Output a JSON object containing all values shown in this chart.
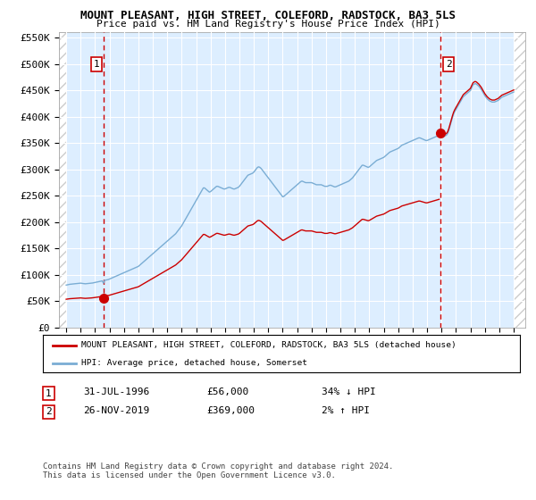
{
  "title": "MOUNT PLEASANT, HIGH STREET, COLEFORD, RADSTOCK, BA3 5LS",
  "subtitle": "Price paid vs. HM Land Registry's House Price Index (HPI)",
  "legend_line1": "MOUNT PLEASANT, HIGH STREET, COLEFORD, RADSTOCK, BA3 5LS (detached house)",
  "legend_line2": "HPI: Average price, detached house, Somerset",
  "footnote": "Contains HM Land Registry data © Crown copyright and database right 2024.\nThis data is licensed under the Open Government Licence v3.0.",
  "sale1_date": "31-JUL-1996",
  "sale1_price": 56000,
  "sale1_hpi": "34% ↓ HPI",
  "sale1_label": "1",
  "sale1_year": 1996.583,
  "sale2_date": "26-NOV-2019",
  "sale2_price": 369000,
  "sale2_label": "2",
  "sale2_year": 2019.9,
  "sale2_hpi": "2% ↑ HPI",
  "ylim": [
    0,
    560000
  ],
  "yticks": [
    0,
    50000,
    100000,
    150000,
    200000,
    250000,
    300000,
    350000,
    400000,
    450000,
    500000,
    550000
  ],
  "ytick_labels": [
    "£0",
    "£50K",
    "£100K",
    "£150K",
    "£200K",
    "£250K",
    "£300K",
    "£350K",
    "£400K",
    "£450K",
    "£500K",
    "£550K"
  ],
  "xlim_start": 1993.5,
  "xlim_end": 2025.8,
  "hpi_color": "#7aadd4",
  "sale_color": "#cc0000",
  "background_color": "#ddeeff",
  "hatch_color": "#cccccc",
  "grid_color": "#ffffff",
  "vline_color": "#cc0000",
  "hpi_monthly": [
    [
      1994.0,
      80500
    ],
    [
      1994.083,
      81000
    ],
    [
      1994.167,
      81500
    ],
    [
      1994.25,
      82000
    ],
    [
      1994.333,
      82200
    ],
    [
      1994.417,
      82500
    ],
    [
      1994.5,
      82800
    ],
    [
      1994.583,
      83000
    ],
    [
      1994.667,
      83200
    ],
    [
      1994.75,
      83500
    ],
    [
      1994.833,
      83700
    ],
    [
      1994.917,
      84000
    ],
    [
      1995.0,
      84200
    ],
    [
      1995.083,
      83800
    ],
    [
      1995.167,
      83500
    ],
    [
      1995.25,
      83200
    ],
    [
      1995.333,
      83000
    ],
    [
      1995.417,
      83200
    ],
    [
      1995.5,
      83500
    ],
    [
      1995.583,
      83800
    ],
    [
      1995.667,
      84000
    ],
    [
      1995.75,
      84200
    ],
    [
      1995.833,
      84500
    ],
    [
      1995.917,
      85000
    ],
    [
      1996.0,
      85500
    ],
    [
      1996.083,
      86000
    ],
    [
      1996.167,
      86500
    ],
    [
      1996.25,
      87000
    ],
    [
      1996.333,
      87500
    ],
    [
      1996.417,
      88000
    ],
    [
      1996.5,
      88500
    ],
    [
      1996.583,
      84000
    ],
    [
      1996.667,
      89500
    ],
    [
      1996.75,
      90000
    ],
    [
      1996.833,
      90500
    ],
    [
      1996.917,
      91000
    ],
    [
      1997.0,
      92000
    ],
    [
      1997.083,
      93000
    ],
    [
      1997.167,
      94000
    ],
    [
      1997.25,
      95000
    ],
    [
      1997.333,
      96000
    ],
    [
      1997.417,
      97000
    ],
    [
      1997.5,
      98000
    ],
    [
      1997.583,
      99000
    ],
    [
      1997.667,
      100000
    ],
    [
      1997.75,
      101000
    ],
    [
      1997.833,
      102000
    ],
    [
      1997.917,
      103000
    ],
    [
      1998.0,
      104000
    ],
    [
      1998.083,
      105000
    ],
    [
      1998.167,
      106000
    ],
    [
      1998.25,
      107000
    ],
    [
      1998.333,
      108000
    ],
    [
      1998.417,
      109000
    ],
    [
      1998.5,
      110000
    ],
    [
      1998.583,
      111000
    ],
    [
      1998.667,
      112000
    ],
    [
      1998.75,
      113000
    ],
    [
      1998.833,
      114000
    ],
    [
      1998.917,
      115000
    ],
    [
      1999.0,
      116000
    ],
    [
      1999.083,
      118000
    ],
    [
      1999.167,
      120000
    ],
    [
      1999.25,
      122000
    ],
    [
      1999.333,
      124000
    ],
    [
      1999.417,
      126000
    ],
    [
      1999.5,
      128000
    ],
    [
      1999.583,
      130000
    ],
    [
      1999.667,
      132000
    ],
    [
      1999.75,
      134000
    ],
    [
      1999.833,
      136000
    ],
    [
      1999.917,
      138000
    ],
    [
      2000.0,
      140000
    ],
    [
      2000.083,
      142000
    ],
    [
      2000.167,
      144000
    ],
    [
      2000.25,
      146000
    ],
    [
      2000.333,
      148000
    ],
    [
      2000.417,
      150000
    ],
    [
      2000.5,
      152000
    ],
    [
      2000.583,
      154000
    ],
    [
      2000.667,
      156000
    ],
    [
      2000.75,
      158000
    ],
    [
      2000.833,
      160000
    ],
    [
      2000.917,
      162000
    ],
    [
      2001.0,
      164000
    ],
    [
      2001.083,
      166000
    ],
    [
      2001.167,
      168000
    ],
    [
      2001.25,
      170000
    ],
    [
      2001.333,
      172000
    ],
    [
      2001.417,
      174000
    ],
    [
      2001.5,
      176000
    ],
    [
      2001.583,
      178000
    ],
    [
      2001.667,
      181000
    ],
    [
      2001.75,
      184000
    ],
    [
      2001.833,
      187000
    ],
    [
      2001.917,
      190000
    ],
    [
      2002.0,
      193000
    ],
    [
      2002.083,
      197000
    ],
    [
      2002.167,
      201000
    ],
    [
      2002.25,
      205000
    ],
    [
      2002.333,
      209000
    ],
    [
      2002.417,
      213000
    ],
    [
      2002.5,
      217000
    ],
    [
      2002.583,
      221000
    ],
    [
      2002.667,
      225000
    ],
    [
      2002.75,
      229000
    ],
    [
      2002.833,
      233000
    ],
    [
      2002.917,
      237000
    ],
    [
      2003.0,
      241000
    ],
    [
      2003.083,
      245000
    ],
    [
      2003.167,
      249000
    ],
    [
      2003.25,
      253000
    ],
    [
      2003.333,
      257000
    ],
    [
      2003.417,
      261000
    ],
    [
      2003.5,
      265000
    ],
    [
      2003.583,
      265000
    ],
    [
      2003.667,
      263000
    ],
    [
      2003.75,
      261000
    ],
    [
      2003.833,
      259000
    ],
    [
      2003.917,
      257000
    ],
    [
      2004.0,
      258000
    ],
    [
      2004.083,
      260000
    ],
    [
      2004.167,
      262000
    ],
    [
      2004.25,
      264000
    ],
    [
      2004.333,
      266000
    ],
    [
      2004.417,
      268000
    ],
    [
      2004.5,
      268000
    ],
    [
      2004.583,
      267000
    ],
    [
      2004.667,
      266000
    ],
    [
      2004.75,
      265000
    ],
    [
      2004.833,
      264000
    ],
    [
      2004.917,
      263000
    ],
    [
      2005.0,
      263000
    ],
    [
      2005.083,
      264000
    ],
    [
      2005.167,
      265000
    ],
    [
      2005.25,
      266000
    ],
    [
      2005.333,
      266000
    ],
    [
      2005.417,
      265000
    ],
    [
      2005.5,
      264000
    ],
    [
      2005.583,
      263000
    ],
    [
      2005.667,
      263000
    ],
    [
      2005.75,
      264000
    ],
    [
      2005.833,
      265000
    ],
    [
      2005.917,
      266000
    ],
    [
      2006.0,
      268000
    ],
    [
      2006.083,
      271000
    ],
    [
      2006.167,
      274000
    ],
    [
      2006.25,
      277000
    ],
    [
      2006.333,
      280000
    ],
    [
      2006.417,
      283000
    ],
    [
      2006.5,
      286000
    ],
    [
      2006.583,
      289000
    ],
    [
      2006.667,
      290000
    ],
    [
      2006.75,
      291000
    ],
    [
      2006.833,
      292000
    ],
    [
      2006.917,
      293000
    ],
    [
      2007.0,
      295000
    ],
    [
      2007.083,
      298000
    ],
    [
      2007.167,
      301000
    ],
    [
      2007.25,
      304000
    ],
    [
      2007.333,
      305000
    ],
    [
      2007.417,
      304000
    ],
    [
      2007.5,
      302000
    ],
    [
      2007.583,
      299000
    ],
    [
      2007.667,
      296000
    ],
    [
      2007.75,
      293000
    ],
    [
      2007.833,
      290000
    ],
    [
      2007.917,
      287000
    ],
    [
      2008.0,
      284000
    ],
    [
      2008.083,
      281000
    ],
    [
      2008.167,
      278000
    ],
    [
      2008.25,
      275000
    ],
    [
      2008.333,
      272000
    ],
    [
      2008.417,
      269000
    ],
    [
      2008.5,
      266000
    ],
    [
      2008.583,
      263000
    ],
    [
      2008.667,
      260000
    ],
    [
      2008.75,
      257000
    ],
    [
      2008.833,
      254000
    ],
    [
      2008.917,
      251000
    ],
    [
      2009.0,
      248000
    ],
    [
      2009.083,
      249000
    ],
    [
      2009.167,
      251000
    ],
    [
      2009.25,
      253000
    ],
    [
      2009.333,
      255000
    ],
    [
      2009.417,
      257000
    ],
    [
      2009.5,
      259000
    ],
    [
      2009.583,
      261000
    ],
    [
      2009.667,
      263000
    ],
    [
      2009.75,
      265000
    ],
    [
      2009.833,
      267000
    ],
    [
      2009.917,
      269000
    ],
    [
      2010.0,
      271000
    ],
    [
      2010.083,
      273000
    ],
    [
      2010.167,
      275000
    ],
    [
      2010.25,
      277000
    ],
    [
      2010.333,
      278000
    ],
    [
      2010.417,
      277000
    ],
    [
      2010.5,
      276000
    ],
    [
      2010.583,
      275000
    ],
    [
      2010.667,
      275000
    ],
    [
      2010.75,
      275000
    ],
    [
      2010.833,
      275000
    ],
    [
      2010.917,
      275000
    ],
    [
      2011.0,
      275000
    ],
    [
      2011.083,
      274000
    ],
    [
      2011.167,
      273000
    ],
    [
      2011.25,
      272000
    ],
    [
      2011.333,
      271000
    ],
    [
      2011.417,
      271000
    ],
    [
      2011.5,
      271000
    ],
    [
      2011.583,
      271000
    ],
    [
      2011.667,
      271000
    ],
    [
      2011.75,
      270000
    ],
    [
      2011.833,
      269000
    ],
    [
      2011.917,
      268000
    ],
    [
      2012.0,
      268000
    ],
    [
      2012.083,
      268000
    ],
    [
      2012.167,
      269000
    ],
    [
      2012.25,
      270000
    ],
    [
      2012.333,
      270000
    ],
    [
      2012.417,
      269000
    ],
    [
      2012.5,
      268000
    ],
    [
      2012.583,
      267000
    ],
    [
      2012.667,
      267000
    ],
    [
      2012.75,
      268000
    ],
    [
      2012.833,
      269000
    ],
    [
      2012.917,
      270000
    ],
    [
      2013.0,
      271000
    ],
    [
      2013.083,
      272000
    ],
    [
      2013.167,
      273000
    ],
    [
      2013.25,
      274000
    ],
    [
      2013.333,
      275000
    ],
    [
      2013.417,
      276000
    ],
    [
      2013.5,
      277000
    ],
    [
      2013.583,
      278000
    ],
    [
      2013.667,
      280000
    ],
    [
      2013.75,
      282000
    ],
    [
      2013.833,
      284000
    ],
    [
      2013.917,
      287000
    ],
    [
      2014.0,
      290000
    ],
    [
      2014.083,
      293000
    ],
    [
      2014.167,
      296000
    ],
    [
      2014.25,
      299000
    ],
    [
      2014.333,
      302000
    ],
    [
      2014.417,
      305000
    ],
    [
      2014.5,
      308000
    ],
    [
      2014.583,
      308000
    ],
    [
      2014.667,
      307000
    ],
    [
      2014.75,
      306000
    ],
    [
      2014.833,
      305000
    ],
    [
      2014.917,
      304000
    ],
    [
      2015.0,
      305000
    ],
    [
      2015.083,
      307000
    ],
    [
      2015.167,
      309000
    ],
    [
      2015.25,
      311000
    ],
    [
      2015.333,
      313000
    ],
    [
      2015.417,
      315000
    ],
    [
      2015.5,
      317000
    ],
    [
      2015.583,
      318000
    ],
    [
      2015.667,
      319000
    ],
    [
      2015.75,
      320000
    ],
    [
      2015.833,
      321000
    ],
    [
      2015.917,
      322000
    ],
    [
      2016.0,
      323000
    ],
    [
      2016.083,
      325000
    ],
    [
      2016.167,
      327000
    ],
    [
      2016.25,
      329000
    ],
    [
      2016.333,
      331000
    ],
    [
      2016.417,
      333000
    ],
    [
      2016.5,
      334000
    ],
    [
      2016.583,
      335000
    ],
    [
      2016.667,
      336000
    ],
    [
      2016.75,
      337000
    ],
    [
      2016.833,
      338000
    ],
    [
      2016.917,
      339000
    ],
    [
      2017.0,
      340000
    ],
    [
      2017.083,
      342000
    ],
    [
      2017.167,
      344000
    ],
    [
      2017.25,
      346000
    ],
    [
      2017.333,
      347000
    ],
    [
      2017.417,
      348000
    ],
    [
      2017.5,
      349000
    ],
    [
      2017.583,
      350000
    ],
    [
      2017.667,
      351000
    ],
    [
      2017.75,
      352000
    ],
    [
      2017.833,
      353000
    ],
    [
      2017.917,
      354000
    ],
    [
      2018.0,
      355000
    ],
    [
      2018.083,
      356000
    ],
    [
      2018.167,
      357000
    ],
    [
      2018.25,
      358000
    ],
    [
      2018.333,
      359000
    ],
    [
      2018.417,
      360000
    ],
    [
      2018.5,
      360000
    ],
    [
      2018.583,
      359000
    ],
    [
      2018.667,
      358000
    ],
    [
      2018.75,
      357000
    ],
    [
      2018.833,
      356000
    ],
    [
      2018.917,
      355000
    ],
    [
      2019.0,
      355000
    ],
    [
      2019.083,
      356000
    ],
    [
      2019.167,
      357000
    ],
    [
      2019.25,
      358000
    ],
    [
      2019.333,
      359000
    ],
    [
      2019.417,
      360000
    ],
    [
      2019.5,
      361000
    ],
    [
      2019.583,
      362000
    ],
    [
      2019.667,
      363000
    ],
    [
      2019.75,
      364000
    ],
    [
      2019.833,
      365000
    ],
    [
      2019.917,
      366000
    ],
    [
      2020.0,
      367000
    ],
    [
      2020.083,
      368000
    ],
    [
      2020.167,
      366000
    ],
    [
      2020.25,
      364000
    ],
    [
      2020.333,
      365000
    ],
    [
      2020.417,
      368000
    ],
    [
      2020.5,
      374000
    ],
    [
      2020.583,
      382000
    ],
    [
      2020.667,
      390000
    ],
    [
      2020.75,
      398000
    ],
    [
      2020.833,
      405000
    ],
    [
      2020.917,
      410000
    ],
    [
      2021.0,
      414000
    ],
    [
      2021.083,
      418000
    ],
    [
      2021.167,
      422000
    ],
    [
      2021.25,
      426000
    ],
    [
      2021.333,
      430000
    ],
    [
      2021.417,
      434000
    ],
    [
      2021.5,
      438000
    ],
    [
      2021.583,
      440000
    ],
    [
      2021.667,
      442000
    ],
    [
      2021.75,
      444000
    ],
    [
      2021.833,
      446000
    ],
    [
      2021.917,
      448000
    ],
    [
      2022.0,
      450000
    ],
    [
      2022.083,
      455000
    ],
    [
      2022.167,
      460000
    ],
    [
      2022.25,
      462000
    ],
    [
      2022.333,
      463000
    ],
    [
      2022.417,
      462000
    ],
    [
      2022.5,
      460000
    ],
    [
      2022.583,
      458000
    ],
    [
      2022.667,
      455000
    ],
    [
      2022.75,
      452000
    ],
    [
      2022.833,
      448000
    ],
    [
      2022.917,
      444000
    ],
    [
      2023.0,
      440000
    ],
    [
      2023.083,
      437000
    ],
    [
      2023.167,
      434000
    ],
    [
      2023.25,
      432000
    ],
    [
      2023.333,
      430000
    ],
    [
      2023.417,
      429000
    ],
    [
      2023.5,
      428000
    ],
    [
      2023.583,
      428000
    ],
    [
      2023.667,
      428000
    ],
    [
      2023.75,
      429000
    ],
    [
      2023.833,
      430000
    ],
    [
      2023.917,
      431000
    ],
    [
      2024.0,
      433000
    ],
    [
      2024.083,
      435000
    ],
    [
      2024.167,
      437000
    ],
    [
      2024.25,
      438000
    ],
    [
      2024.333,
      439000
    ],
    [
      2024.417,
      440000
    ],
    [
      2024.5,
      441000
    ],
    [
      2024.583,
      442000
    ],
    [
      2024.667,
      443000
    ],
    [
      2024.75,
      444000
    ],
    [
      2024.833,
      445000
    ],
    [
      2024.917,
      446000
    ],
    [
      2025.0,
      447000
    ]
  ]
}
